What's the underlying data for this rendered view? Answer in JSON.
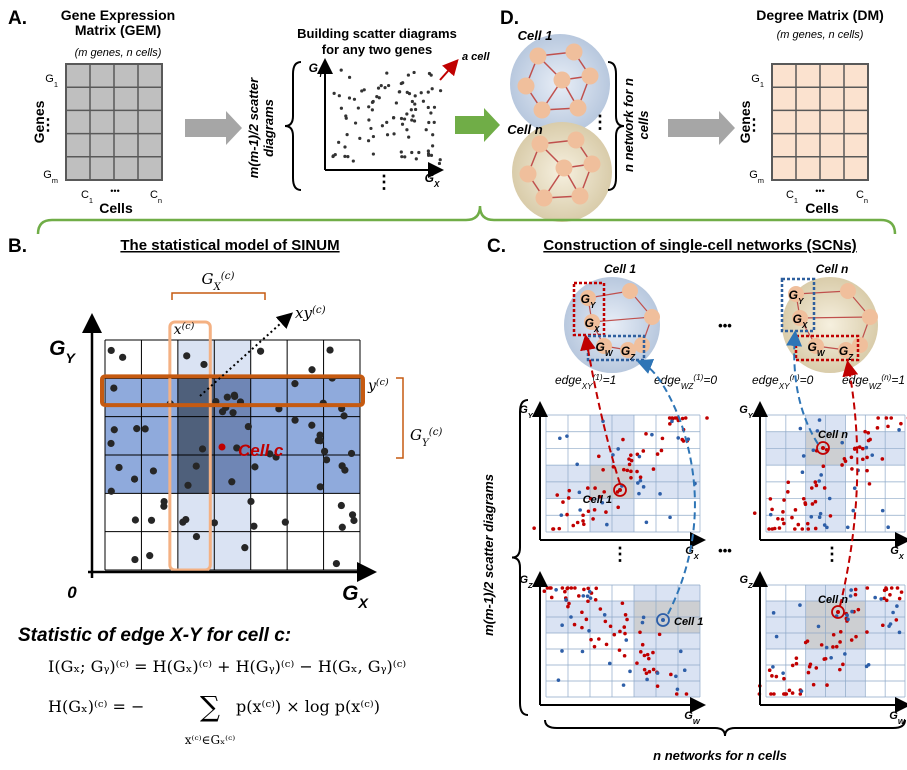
{
  "panel_a": {
    "label": "A.",
    "gem_title": [
      "Gene Expression",
      "Matrix (GEM)"
    ],
    "gem_subtitle": "(m genes, n cells)",
    "genes": "Genes",
    "g_first": {
      "symbol": "G",
      "sub": "1"
    },
    "g_last": {
      "symbol": "G",
      "sub": "m"
    },
    "vdots": "⋮",
    "c_first": {
      "symbol": "C",
      "sub": "1"
    },
    "c_last": {
      "symbol": "C",
      "sub": "n"
    },
    "hdots": "•••",
    "cells": "Cells",
    "scatter_count": [
      "m(m-1)/2 scatter",
      "diagrams"
    ],
    "scatter_title": [
      "Building scatter diagrams",
      "for any two genes"
    ],
    "y_axis": {
      "symbol": "G",
      "sub": "Y"
    },
    "x_axis": {
      "symbol": "G",
      "sub": "X"
    },
    "a_cell": "a cell",
    "more": "⋮"
  },
  "panel_d": {
    "label": "D.",
    "cell_first": "Cell 1",
    "cell_last": "Cell n",
    "more": "⋮",
    "networks": [
      "n network for n",
      "cells"
    ],
    "dm_title": "Degree Matrix (DM)",
    "dm_subtitle": "(m genes, n cells)",
    "genes": "Genes",
    "g_first": {
      "symbol": "G",
      "sub": "1"
    },
    "g_last": {
      "symbol": "G",
      "sub": "m"
    },
    "vdots": "⋮",
    "c_first": {
      "symbol": "C",
      "sub": "1"
    },
    "c_last": {
      "symbol": "C",
      "sub": "n"
    },
    "hdots": "•••",
    "cells": "Cells"
  },
  "panel_b": {
    "label": "B.",
    "title": "The statistical model of SINUM",
    "gx_c": {
      "symbol": "G",
      "sub": "X",
      "sup": "(c)"
    },
    "x_c": {
      "symbol": "x",
      "sup": "(c)"
    },
    "xy_c": {
      "symbol": "xy",
      "sup": "(c)"
    },
    "y_c": {
      "symbol": "y",
      "sup": "(c)"
    },
    "gy_c": {
      "symbol": "G",
      "sub": "Y",
      "sup": "(c)"
    },
    "y_axis": {
      "symbol": "G",
      "sub": "Y"
    },
    "x_axis": {
      "symbol": "G",
      "sub": "X"
    },
    "origin": "0",
    "cell_c": "Cell c",
    "statistic": "Statistic of edge X-Y for cell c:",
    "formula_mi": "I(Gₓ; Gᵧ)⁽ᶜ⁾ = H(Gₓ)⁽ᶜ⁾ + H(Gᵧ)⁽ᶜ⁾ − H(Gₓ, Gᵧ)⁽ᶜ⁾",
    "formula_h": {
      "lhs": "H(Gₓ)⁽ᶜ⁾ = −",
      "sum": "∑",
      "rhs": "p(x⁽ᶜ⁾) × log p(x⁽ᶜ⁾)",
      "index": "x⁽ᶜ⁾∈Gₓ⁽ᶜ⁾"
    }
  },
  "panel_c": {
    "label": "C.",
    "title": "Construction of single-cell networks (SCNs)",
    "cell_first": "Cell 1",
    "cell_last": "Cell n",
    "more": "•••",
    "network_1_genes": [
      {
        "symbol": "G",
        "sub": "Y"
      },
      {
        "symbol": "G",
        "sub": "X"
      },
      {
        "symbol": "G",
        "sub": "W"
      },
      {
        "symbol": "G",
        "sub": "Z"
      }
    ],
    "network_n_genes": [
      {
        "symbol": "G",
        "sub": "Y"
      },
      {
        "symbol": "G",
        "sub": "X"
      },
      {
        "symbol": "G",
        "sub": "W"
      },
      {
        "symbol": "G",
        "sub": "Z"
      }
    ],
    "edges": [
      {
        "symbol": "edge",
        "sub": "XY",
        "sup": "(1)",
        "rest": "=1"
      },
      {
        "symbol": "edge",
        "sub": "WZ",
        "sup": "(1)",
        "rest": "=0"
      },
      {
        "symbol": "edge",
        "sub": "XY",
        "sup": "(n)",
        "rest": "=0"
      },
      {
        "symbol": "edge",
        "sub": "WZ",
        "sup": "(n)",
        "rest": "=1"
      }
    ],
    "diagrams_label": "m(m-1)/2 scatter diagrams",
    "plots": [
      {
        "y_axis": {
          "symbol": "G",
          "sub": "Y"
        },
        "x_axis": {
          "symbol": "G",
          "sub": "X"
        },
        "cell": "Cell 1"
      },
      {
        "y_axis": {
          "symbol": "G",
          "sub": "Y"
        },
        "x_axis": {
          "symbol": "G",
          "sub": "X"
        },
        "cell": "Cell n"
      },
      {
        "y_axis": {
          "symbol": "G",
          "sub": "Z"
        },
        "x_axis": {
          "symbol": "G",
          "sub": "W"
        },
        "cell": "Cell 1"
      },
      {
        "y_axis": {
          "symbol": "G",
          "sub": "Z"
        },
        "x_axis": {
          "symbol": "G",
          "sub": "W"
        },
        "cell": "Cell n"
      }
    ],
    "vmore": "⋮",
    "hmore": "•••",
    "footer": "n networks for n cells"
  }
}
